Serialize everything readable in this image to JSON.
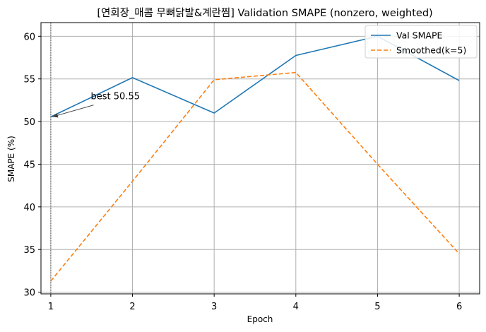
{
  "chart_data": {
    "type": "line",
    "title": "[연회장_매콤 무뼈닭발&계란찜] Validation SMAPE (nonzero, weighted)",
    "xlabel": "Epoch",
    "ylabel": "SMAPE (%)",
    "x": [
      1,
      2,
      3,
      4,
      5,
      6
    ],
    "xticks": [
      "1",
      "2",
      "3",
      "4",
      "5",
      "6"
    ],
    "yticks": [
      "30",
      "35",
      "40",
      "45",
      "50",
      "55",
      "60"
    ],
    "xlim": [
      0.88,
      6.25
    ],
    "ylim": [
      29.8,
      61.6
    ],
    "grid": true,
    "legend_position": "top-right",
    "series": [
      {
        "name": "Val SMAPE",
        "color": "#1f77b4",
        "style": "solid",
        "values": [
          50.55,
          55.15,
          51.0,
          57.75,
          60.0,
          54.8
        ]
      },
      {
        "name": "Smoothed(k=5)",
        "color": "#ff7f0e",
        "style": "dashed",
        "values": [
          31.3,
          43.0,
          54.9,
          55.75,
          45.0,
          34.5
        ]
      }
    ],
    "best_marker": {
      "x": 1,
      "y": 50.55,
      "color": "#808080"
    },
    "annotation": {
      "text": "best 50.55",
      "x": 1,
      "y": 50.55,
      "text_x": 1.49,
      "text_y": 52.6
    }
  }
}
